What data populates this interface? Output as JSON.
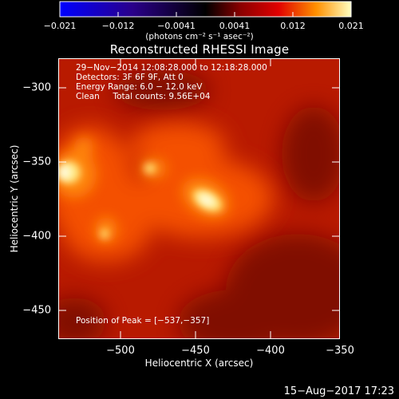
{
  "colorbar": {
    "ticks": [
      "−0.021",
      "−0.012",
      "−0.0041",
      "0.0041",
      "0.012",
      "0.021"
    ],
    "unit": "(photons cm⁻² s⁻¹ asec⁻²)"
  },
  "title": "Reconstructed RHESSI Image",
  "info": {
    "time": "29−Nov−2014 12:08:28.000 to 12:18:28.000",
    "detectors": "Detectors: 3F 6F 9F, Att 0",
    "energy": "Energy Range: 6.0 − 12.0 keV",
    "clean": "Clean     Total counts: 9.56E+04",
    "peak": "Position of Peak = [−537,−357]"
  },
  "axes": {
    "xlabel": "Heliocentric X (arcsec)",
    "ylabel": "Heliocentric Y (arcsec)",
    "xticks": [
      "−500",
      "−450",
      "−400",
      "−350"
    ],
    "yticks": [
      "−300",
      "−350",
      "−400",
      "−450"
    ]
  },
  "timestamp": "15−Aug−2017 17:23",
  "colors": {
    "background": "#000000",
    "text": "#ffffff"
  }
}
